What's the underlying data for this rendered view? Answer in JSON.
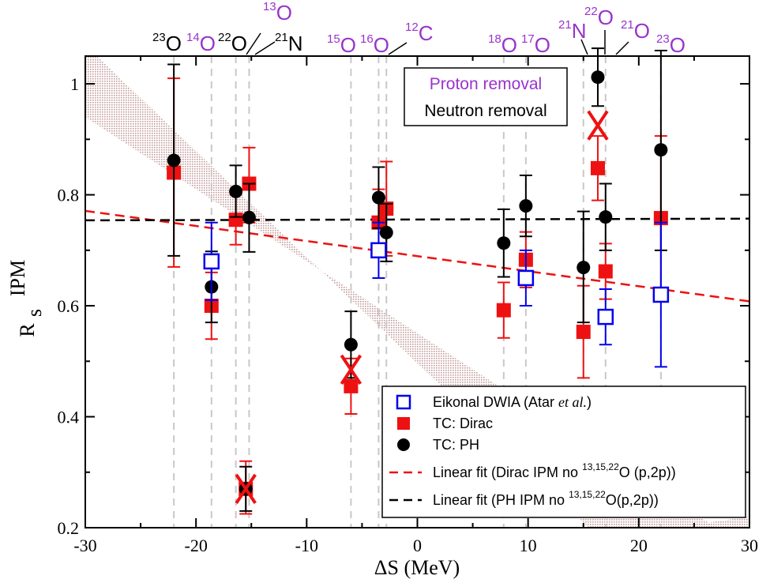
{
  "chart_data": {
    "type": "scatter",
    "xlabel": "ΔS (MeV)",
    "ylabel_main": "R",
    "ylabel_sub": "s",
    "ylabel_sup": "IPM",
    "xlim": [
      -30,
      30
    ],
    "ylim": [
      0.2,
      1.05
    ],
    "xticks": [
      -30,
      -20,
      -10,
      0,
      10,
      20,
      30
    ],
    "xtick_labels": [
      "-30",
      "-20",
      "-10",
      "0",
      "10",
      "20",
      "30"
    ],
    "yticks": [
      0.2,
      0.4,
      0.6,
      0.8,
      1.0
    ],
    "ytick_labels": [
      "0.2",
      "0.4",
      "0.6",
      "0.8",
      "1"
    ],
    "nuclei_top": [
      {
        "mass": "23",
        "symbol": "O",
        "x": -22.0,
        "color": "#000000"
      },
      {
        "mass": "14",
        "symbol": "O",
        "x": -18.6,
        "color": "#9933cc"
      },
      {
        "mass": "22",
        "symbol": "O",
        "x": -16.4,
        "color": "#000000"
      },
      {
        "mass": "13",
        "symbol": "O",
        "x": -15.8,
        "color": "#9933cc"
      },
      {
        "mass": "21",
        "symbol": "N",
        "x": -15.2,
        "color": "#000000"
      },
      {
        "mass": "15",
        "symbol": "O",
        "x": -6.0,
        "color": "#9933cc"
      },
      {
        "mass": "16",
        "symbol": "O",
        "x": -3.5,
        "color": "#9933cc"
      },
      {
        "mass": "12",
        "symbol": "C",
        "x": -2.8,
        "color": "#9933cc"
      },
      {
        "mass": "18",
        "symbol": "O",
        "x": 7.8,
        "color": "#9933cc"
      },
      {
        "mass": "17",
        "symbol": "O",
        "x": 9.8,
        "color": "#9933cc"
      },
      {
        "mass": "21",
        "symbol": "N",
        "x": 15.0,
        "color": "#9933cc"
      },
      {
        "mass": "22",
        "symbol": "O",
        "x": 16.3,
        "color": "#9933cc"
      },
      {
        "mass": "21",
        "symbol": "O",
        "x": 17.0,
        "color": "#9933cc"
      },
      {
        "mass": "23",
        "symbol": "O",
        "x": 22.0,
        "color": "#9933cc"
      }
    ],
    "vertical_lines_x": [
      -22.0,
      -18.6,
      -16.4,
      -15.2,
      -6.0,
      -3.5,
      -2.8,
      7.8,
      9.8,
      15.0,
      17.0,
      22.0
    ],
    "band": {
      "upper": [
        [
          -30,
          1.07
        ],
        [
          15.5,
          0.2
        ]
      ],
      "lower": [
        [
          -30,
          0.94
        ],
        [
          27,
          0.2
        ]
      ],
      "extra_corner": [
        [
          23,
          0.2
        ],
        [
          30,
          0.2
        ],
        [
          30,
          0.22
        ]
      ],
      "color": "#d8b5b5"
    },
    "series": [
      {
        "name": "Eikonal DWIA (Atar et al.)",
        "marker": "open-square",
        "color": "#0000ee",
        "points": [
          {
            "x": -18.6,
            "y": 0.68,
            "lo": 0.61,
            "hi": 0.75
          },
          {
            "x": -3.5,
            "y": 0.7,
            "lo": 0.65,
            "hi": 0.75
          },
          {
            "x": 9.8,
            "y": 0.65,
            "lo": 0.6,
            "hi": 0.7
          },
          {
            "x": 17.0,
            "y": 0.58,
            "lo": 0.53,
            "hi": 0.63
          },
          {
            "x": 22.0,
            "y": 0.62,
            "lo": 0.49,
            "hi": 0.75
          }
        ]
      },
      {
        "name": "TC: Dirac",
        "marker": "filled-square",
        "color": "#ee1111",
        "points": [
          {
            "x": -22.0,
            "y": 0.84,
            "lo": 0.67,
            "hi": 1.01
          },
          {
            "x": -18.6,
            "y": 0.6,
            "lo": 0.54,
            "hi": 0.66
          },
          {
            "x": -16.4,
            "y": 0.755,
            "lo": 0.71,
            "hi": 0.8
          },
          {
            "x": -15.2,
            "y": 0.82,
            "lo": 0.75,
            "hi": 0.885
          },
          {
            "x": -15.5,
            "y": 0.27,
            "lo": 0.225,
            "hi": 0.32
          },
          {
            "x": -6.0,
            "y": 0.455,
            "lo": 0.405,
            "hi": 0.505
          },
          {
            "x": -3.5,
            "y": 0.75,
            "lo": 0.69,
            "hi": 0.81
          },
          {
            "x": -2.8,
            "y": 0.775,
            "lo": 0.69,
            "hi": 0.86
          },
          {
            "x": 7.8,
            "y": 0.592,
            "lo": 0.542,
            "hi": 0.642
          },
          {
            "x": 9.8,
            "y": 0.683,
            "lo": 0.633,
            "hi": 0.733
          },
          {
            "x": 15.0,
            "y": 0.553,
            "lo": 0.47,
            "hi": 0.636
          },
          {
            "x": 16.3,
            "y": 0.848,
            "lo": 0.79,
            "hi": 0.906
          },
          {
            "x": 17.0,
            "y": 0.662,
            "lo": 0.612,
            "hi": 0.712
          },
          {
            "x": 22.0,
            "y": 0.758,
            "lo": 0.61,
            "hi": 0.906
          }
        ]
      },
      {
        "name": "TC: PH",
        "marker": "filled-circle",
        "color": "#000000",
        "points": [
          {
            "x": -22.0,
            "y": 0.862,
            "lo": 0.69,
            "hi": 1.035
          },
          {
            "x": -18.6,
            "y": 0.634,
            "lo": 0.57,
            "hi": 0.698
          },
          {
            "x": -16.4,
            "y": 0.806,
            "lo": 0.76,
            "hi": 0.853
          },
          {
            "x": -15.2,
            "y": 0.759,
            "lo": 0.697,
            "hi": 0.82
          },
          {
            "x": -15.5,
            "y": 0.27,
            "lo": 0.23,
            "hi": 0.31
          },
          {
            "x": -6.0,
            "y": 0.53,
            "lo": 0.47,
            "hi": 0.59
          },
          {
            "x": -3.5,
            "y": 0.795,
            "lo": 0.74,
            "hi": 0.85
          },
          {
            "x": -2.8,
            "y": 0.732,
            "lo": 0.68,
            "hi": 0.784
          },
          {
            "x": 7.8,
            "y": 0.713,
            "lo": 0.652,
            "hi": 0.774
          },
          {
            "x": 9.8,
            "y": 0.78,
            "lo": 0.725,
            "hi": 0.835
          },
          {
            "x": 15.0,
            "y": 0.669,
            "lo": 0.57,
            "hi": 0.77
          },
          {
            "x": 16.3,
            "y": 1.012,
            "lo": 0.96,
            "hi": 1.064
          },
          {
            "x": 17.0,
            "y": 0.76,
            "lo": 0.7,
            "hi": 0.82
          },
          {
            "x": 22.0,
            "y": 0.881,
            "lo": 0.7,
            "hi": 1.06
          }
        ]
      }
    ],
    "x_markers": [
      {
        "x": -15.5,
        "y": 0.27,
        "color": "#ee1111"
      },
      {
        "x": -6.0,
        "y": 0.485,
        "color": "#ee1111"
      },
      {
        "x": 16.3,
        "y": 0.925,
        "color": "#ee1111"
      }
    ],
    "fit_lines": [
      {
        "name": "Linear fit (Dirac IPM no 13,15,22O (p,2p))",
        "color": "#ee1111",
        "dash": "dash",
        "y_at_xmin": 0.771,
        "y_at_xmax": 0.608
      },
      {
        "name": "Linear fit (PH IPM no 13,15,22O(p,2p))",
        "color": "#000000",
        "dash": "dash",
        "y_at_xmin": 0.754,
        "y_at_xmax": 0.757
      }
    ],
    "legend": {
      "placement": "bottom-right",
      "entries": [
        {
          "label_pre": "Eikonal DWIA (Atar ",
          "label_italic": "et al.",
          "label_post": ")"
        },
        {
          "label_pre": "TC: Dirac"
        },
        {
          "label_pre": "TC: PH"
        },
        {
          "label_pre": "Linear fit (Dirac IPM no ",
          "sup": "13,15,22",
          "label_post": "O (p,2p))"
        },
        {
          "label_pre": "Linear fit (PH IPM no ",
          "sup": "13,15,22",
          "label_post": "O(p,2p))"
        }
      ]
    },
    "annotation_box": {
      "placement": "top-right",
      "line1": "Proton removal",
      "line1_color": "#9933cc",
      "line2": "Neutron removal",
      "line2_color": "#000000"
    }
  }
}
